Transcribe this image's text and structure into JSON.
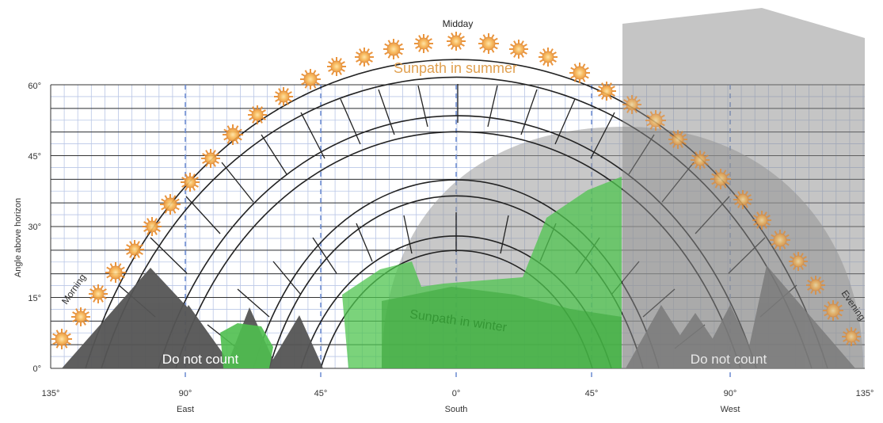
{
  "title": "Midday",
  "yaxis": {
    "label": "Angle above horizon",
    "ticks": [
      "60°",
      "45°",
      "30°",
      "15°",
      "0°"
    ]
  },
  "xaxis": {
    "ticks": [
      "135°",
      "90°",
      "45°",
      "0°",
      "45°",
      "90°",
      "135°"
    ],
    "directions": [
      "East",
      "South",
      "West"
    ]
  },
  "paths": {
    "summer": "Sunpath in summer",
    "winter": "Sunpath in winter"
  },
  "labels": {
    "morning": "Morning",
    "evening": "Evening",
    "exclude_left": "Do not count",
    "exclude_right": "Do not count"
  },
  "colors": {
    "summer_text": "#e0a050",
    "sun_fill": "#f4a43a",
    "grid_line": "#333333",
    "blue_grid": "#a8b8e0",
    "mountain": "#555555",
    "obstruction_green": "#4fc44f",
    "shade_gray": "#9a9a9a"
  },
  "icons": {
    "sun": "sun-icon"
  }
}
